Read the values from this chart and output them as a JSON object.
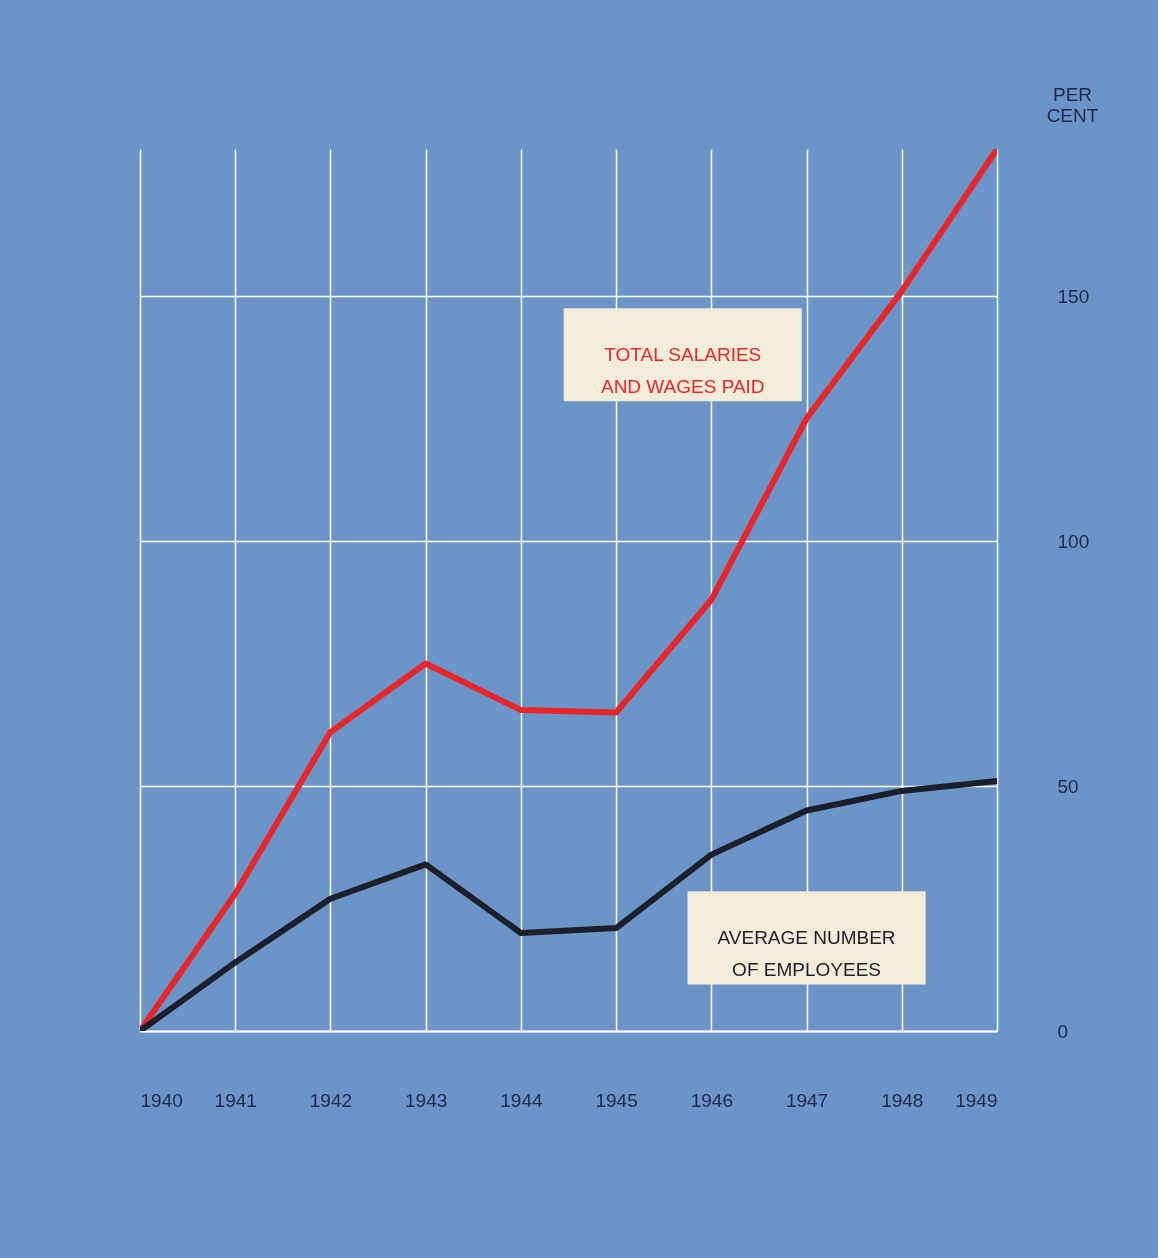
{
  "chart_data": {
    "type": "line",
    "ylabel": "PER CENT",
    "x": [
      1940,
      1941,
      1942,
      1943,
      1944,
      1945,
      1946,
      1947,
      1948,
      1949
    ],
    "series": [
      {
        "name": "TOTAL SALARIES AND WAGES PAID",
        "color": "#e8262a",
        "values": [
          0,
          28,
          61,
          75,
          65.5,
          65,
          88,
          125,
          151,
          180
        ]
      },
      {
        "name": "AVERAGE NUMBER OF EMPLOYEES",
        "color": "#1a1f2a",
        "values": [
          0,
          14,
          27,
          34,
          20,
          21,
          36,
          45,
          49,
          51
        ]
      }
    ],
    "xlim": [
      1940,
      1949
    ],
    "xticks": [
      1940,
      1941,
      1942,
      1943,
      1944,
      1945,
      1946,
      1947,
      1948,
      1949
    ],
    "ylim": [
      0,
      180
    ],
    "yticks": [
      0,
      50,
      100,
      150
    ],
    "grid": true,
    "legend": false,
    "marker": "none",
    "line_style": "solid"
  }
}
